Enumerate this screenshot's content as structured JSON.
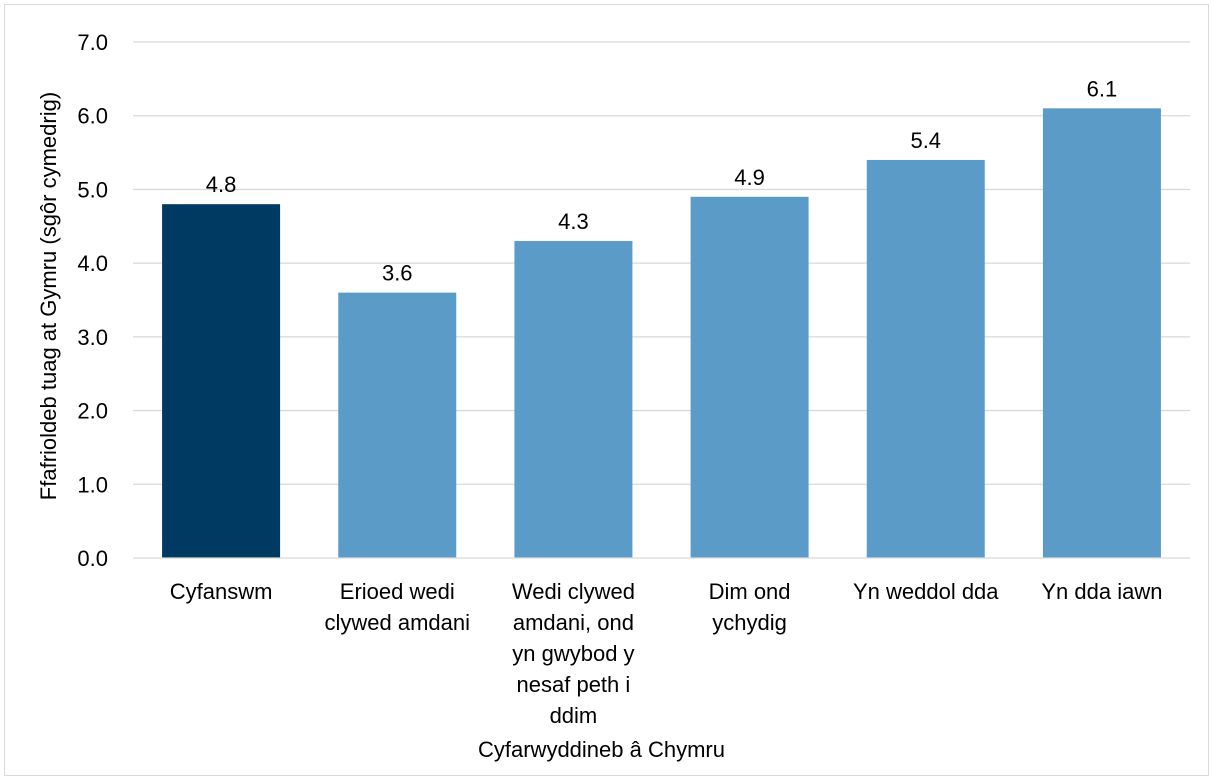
{
  "chart_data": {
    "type": "bar",
    "categories": [
      [
        "Cyfanswm"
      ],
      [
        "Erioed wedi",
        "clywed amdani"
      ],
      [
        "Wedi clywed",
        "amdani, ond",
        "yn gwybod y",
        "nesaf peth i",
        "ddim"
      ],
      [
        "Dim ond",
        "ychydig"
      ],
      [
        "Yn weddol dda"
      ],
      [
        "Yn dda iawn"
      ]
    ],
    "values": [
      4.8,
      3.6,
      4.3,
      4.9,
      5.4,
      6.1
    ],
    "value_labels": [
      "4.8",
      "3.6",
      "4.3",
      "4.9",
      "5.4",
      "6.1"
    ],
    "bar_colors": [
      "#003a63",
      "#5b9bc8",
      "#5b9bc8",
      "#5b9bc8",
      "#5b9bc8",
      "#5b9bc8"
    ],
    "title": "",
    "xlabel": "Cyfarwyddineb â Chymru",
    "ylabel": "Ffafrioldeb tuag at Gymru (sgôr cymedrig)",
    "ylim": [
      0,
      7
    ],
    "yticks": [
      "0.0",
      "1.0",
      "2.0",
      "3.0",
      "4.0",
      "5.0",
      "6.0",
      "7.0"
    ],
    "grid": true,
    "grid_color": "#d9d9d9"
  }
}
